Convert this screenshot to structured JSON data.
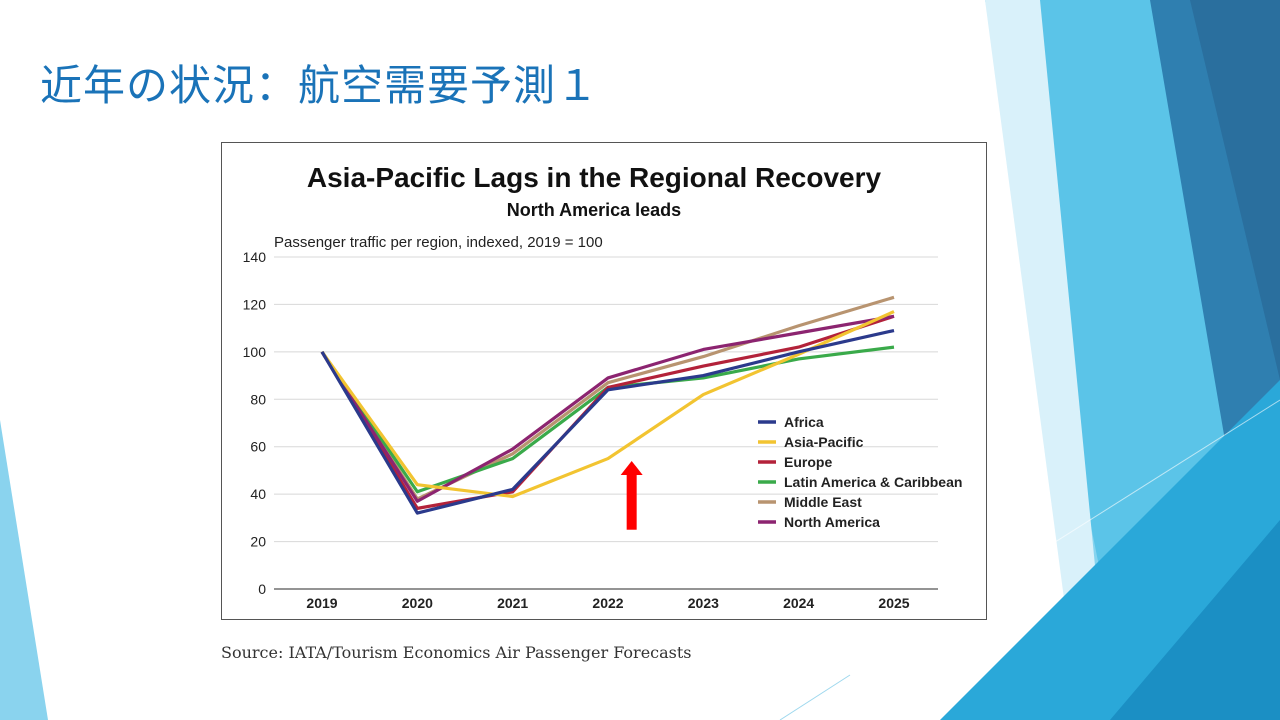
{
  "slide": {
    "title": "近年の状況：航空需要予測１",
    "source": "Source: IATA/Tourism Economics Air Passenger Forecasts",
    "accent_color": "#1a73b8"
  },
  "chart_data": {
    "type": "line",
    "title": "Asia-Pacific Lags in the Regional Recovery",
    "subtitle": "North America leads",
    "ylabel": "Passenger traffic per region, indexed, 2019 = 100",
    "xlabel": "",
    "x": [
      "2019",
      "2020",
      "2021",
      "2022",
      "2023",
      "2024",
      "2025"
    ],
    "ylim": [
      0,
      140
    ],
    "yticks": [
      0,
      20,
      40,
      60,
      80,
      100,
      120,
      140
    ],
    "grid": true,
    "legend_position": "right-center",
    "series": [
      {
        "name": "Africa",
        "color": "#2b3a8c",
        "values": [
          100,
          32,
          42,
          84,
          90,
          100,
          109
        ]
      },
      {
        "name": "Asia-Pacific",
        "color": "#f2c431",
        "values": [
          100,
          44,
          39,
          55,
          82,
          99,
          117
        ]
      },
      {
        "name": "Europe",
        "color": "#b3223a",
        "values": [
          100,
          34,
          41,
          85,
          94,
          102,
          115
        ]
      },
      {
        "name": "Latin America & Caribbean",
        "color": "#3aaa4a",
        "values": [
          100,
          41,
          55,
          85,
          89,
          97,
          102
        ]
      },
      {
        "name": "Middle East",
        "color": "#b89470",
        "values": [
          100,
          38,
          57,
          87,
          98,
          111,
          123
        ]
      },
      {
        "name": "North America",
        "color": "#8c2470",
        "values": [
          100,
          37,
          59,
          89,
          101,
          108,
          115
        ]
      }
    ],
    "annotation": {
      "type": "arrow",
      "color": "#ff0000",
      "direction": "up",
      "x_between": [
        "2022",
        "2023"
      ]
    }
  }
}
